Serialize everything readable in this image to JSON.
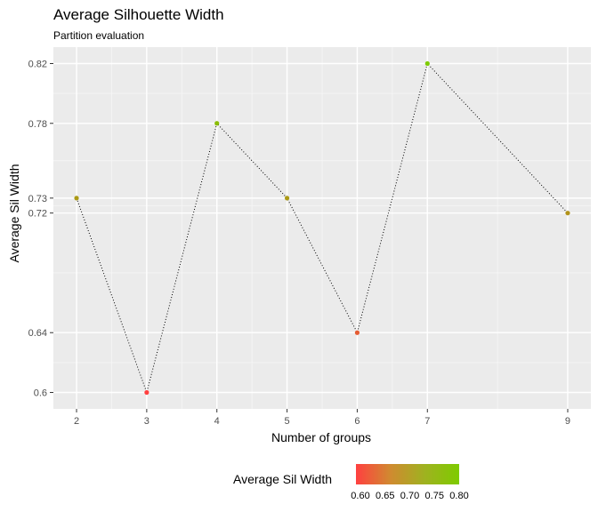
{
  "chart_data": {
    "type": "line",
    "title": "Average Silhouette Width",
    "subtitle": "Partition evaluation",
    "xlabel": "Number  of  groups",
    "ylabel": "Average  Sil  Width",
    "x": [
      2,
      3,
      4,
      5,
      6,
      7,
      9
    ],
    "y": [
      0.73,
      0.6,
      0.78,
      0.73,
      0.64,
      0.82,
      0.72
    ],
    "x_ticks": [
      "2",
      "3",
      "4",
      "5",
      "6",
      "7",
      "9"
    ],
    "y_ticks": [
      "0.6",
      "0.64",
      "0.72",
      "0.73",
      "0.78",
      "0.82"
    ],
    "xlim": [
      1.67,
      9.33
    ],
    "ylim": [
      0.589,
      0.831
    ],
    "line_style": "dotted",
    "grid": true,
    "panel_background": "#ebebeb",
    "legend": {
      "title": "Average  Sil  Width",
      "placement": "bottom",
      "range": [
        0.6,
        0.8
      ],
      "ticks": [
        "0.60",
        "0.65",
        "0.70",
        "0.75",
        "0.80"
      ],
      "colors": [
        "#ff4040",
        "#7ecb00"
      ]
    }
  }
}
